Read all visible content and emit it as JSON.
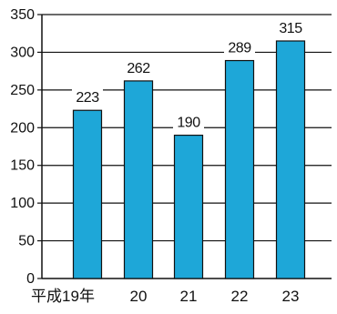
{
  "chart_data": {
    "type": "bar",
    "categories": [
      "平成19年",
      "20",
      "21",
      "22",
      "23"
    ],
    "values": [
      223,
      262,
      190,
      289,
      315
    ],
    "data_labels": [
      "223",
      "262",
      "190",
      "289",
      "315"
    ],
    "title": "",
    "xlabel": "",
    "ylabel": "",
    "ylim": [
      0,
      350
    ],
    "yticks": [
      0,
      50,
      100,
      150,
      200,
      250,
      300,
      350
    ],
    "ytick_labels": [
      "0",
      "50",
      "100",
      "150",
      "200",
      "250",
      "300",
      "350"
    ],
    "grid": true,
    "colors": {
      "bar": "#1ea7d8",
      "bar_outline": "#111111",
      "grid": "#111111",
      "axis": "#111111",
      "text": "#111111"
    }
  }
}
